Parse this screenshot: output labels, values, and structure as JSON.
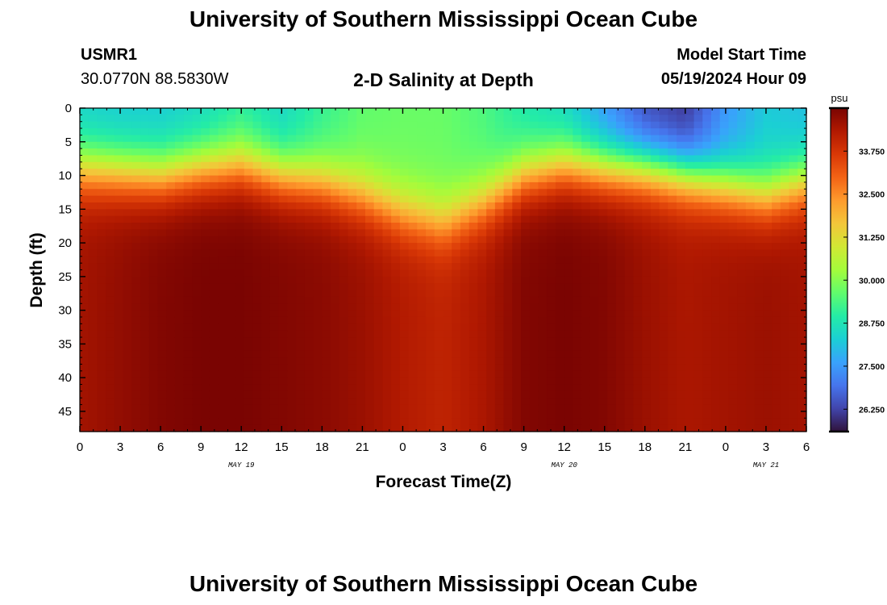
{
  "page": {
    "title_top": "University of Southern Mississippi Ocean Cube",
    "title_bottom": "University of Southern Mississippi Ocean Cube"
  },
  "header": {
    "station": "USMR1",
    "coords": "30.0770N  88.5830W",
    "chart_title": "2-D Salinity at Depth",
    "model_start_label": "Model Start Time",
    "model_start_value": "05/19/2024 Hour 09"
  },
  "chart_data": {
    "type": "heatmap",
    "title": "2-D Salinity at Depth",
    "xlabel": "Forecast Time(Z)",
    "ylabel": "Depth (ft)",
    "x_tick_labels": [
      "0",
      "3",
      "6",
      "9",
      "12",
      "15",
      "18",
      "21",
      "0",
      "3",
      "6",
      "9",
      "12",
      "15",
      "18",
      "21",
      "0",
      "3",
      "6"
    ],
    "date_labels": [
      {
        "label": "MAY 19",
        "tick_index": 4
      },
      {
        "label": "MAY 20",
        "tick_index": 12
      },
      {
        "label": "MAY 21",
        "tick_index": 17
      }
    ],
    "x_hours_range": [
      0,
      54
    ],
    "y_ticks": [
      0,
      5,
      10,
      15,
      20,
      25,
      30,
      35,
      40,
      45
    ],
    "ylim": [
      0,
      48
    ],
    "y_inverted": true,
    "colorbar": {
      "unit": "psu",
      "range": [
        25.6,
        35.0
      ],
      "ticks": [
        "33.750",
        "32.500",
        "31.250",
        "30.000",
        "28.750",
        "27.500",
        "26.250"
      ],
      "tick_values": [
        33.75,
        32.5,
        31.25,
        30.0,
        28.75,
        27.5,
        26.25
      ]
    },
    "surface_salinity_psu": [
      [
        0,
        28.3
      ],
      [
        3,
        28.2
      ],
      [
        6,
        28.2
      ],
      [
        9,
        28.4
      ],
      [
        12,
        28.9
      ],
      [
        15,
        28.4
      ],
      [
        18,
        29.1
      ],
      [
        21,
        29.6
      ],
      [
        24,
        29.7
      ],
      [
        27,
        29.7
      ],
      [
        30,
        29.4
      ],
      [
        33,
        28.8
      ],
      [
        36,
        28.4
      ],
      [
        39,
        27.4
      ],
      [
        42,
        26.3
      ],
      [
        45,
        26.0
      ],
      [
        48,
        27.4
      ],
      [
        51,
        28.2
      ],
      [
        54,
        28.0
      ]
    ],
    "halocline_depth_ft": [
      [
        0,
        9
      ],
      [
        3,
        9.5
      ],
      [
        6,
        10
      ],
      [
        9,
        9
      ],
      [
        12,
        8.5
      ],
      [
        15,
        10
      ],
      [
        18,
        11
      ],
      [
        21,
        13
      ],
      [
        24,
        15.5
      ],
      [
        27,
        17
      ],
      [
        30,
        14
      ],
      [
        33,
        10
      ],
      [
        36,
        8.5
      ],
      [
        39,
        9
      ],
      [
        42,
        9
      ],
      [
        45,
        10
      ],
      [
        48,
        11.5
      ],
      [
        51,
        13
      ],
      [
        54,
        11
      ]
    ],
    "bottom_salinity_psu": [
      [
        0,
        34.5
      ],
      [
        3,
        34.7
      ],
      [
        6,
        34.9
      ],
      [
        9,
        35.0
      ],
      [
        12,
        35.0
      ],
      [
        15,
        34.9
      ],
      [
        18,
        34.8
      ],
      [
        21,
        34.6
      ],
      [
        24,
        34.3
      ],
      [
        27,
        34.1
      ],
      [
        30,
        34.4
      ],
      [
        33,
        34.9
      ],
      [
        36,
        35.0
      ],
      [
        39,
        34.9
      ],
      [
        42,
        34.6
      ],
      [
        45,
        34.4
      ],
      [
        48,
        34.5
      ],
      [
        51,
        34.6
      ],
      [
        54,
        34.5
      ]
    ]
  },
  "colors": {
    "colormap": [
      "#30123b",
      "#4145ab",
      "#4675ed",
      "#39a2fc",
      "#1bcfd4",
      "#24eca6",
      "#61fc6c",
      "#a4fc3b",
      "#d1e834",
      "#f3c63a",
      "#fe9b2d",
      "#f36315",
      "#d93806",
      "#b11901",
      "#7a0402"
    ]
  }
}
